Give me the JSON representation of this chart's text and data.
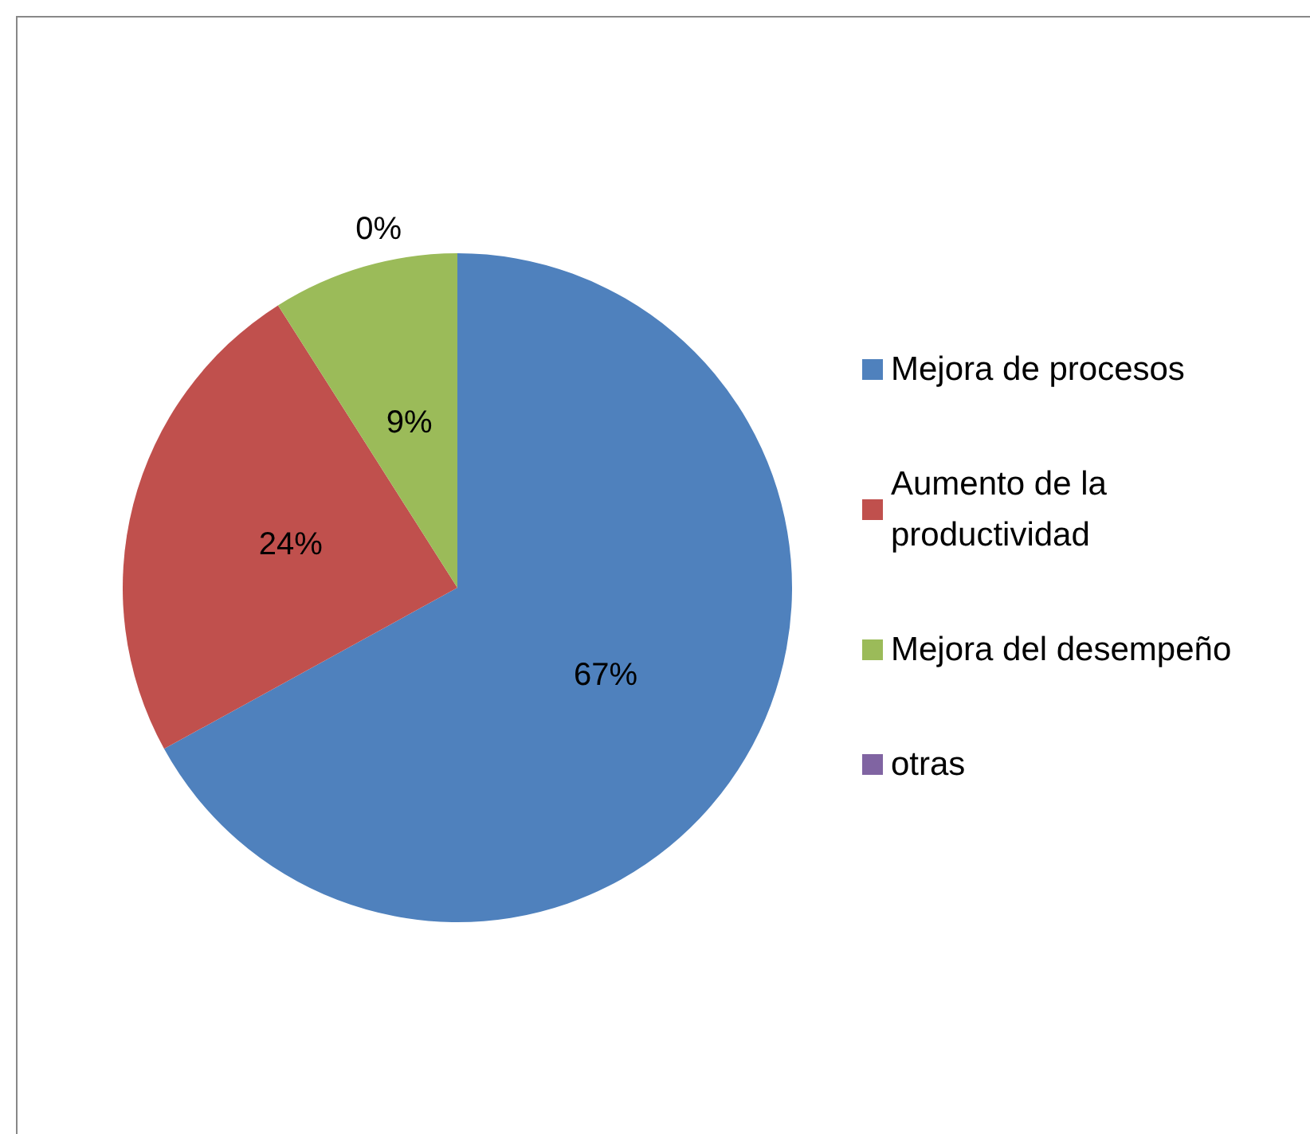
{
  "chart_data": {
    "type": "pie",
    "categories": [
      "Mejora de procesos",
      "Aumento de la productividad",
      "Mejora del desempeño",
      "otras"
    ],
    "values": [
      67,
      24,
      9,
      0
    ],
    "value_labels": [
      "67%",
      "24%",
      "9%",
      "0%"
    ],
    "colors": [
      "#4f81bd",
      "#c0504d",
      "#9bbb59",
      "#8064a2"
    ],
    "legend": "right"
  }
}
